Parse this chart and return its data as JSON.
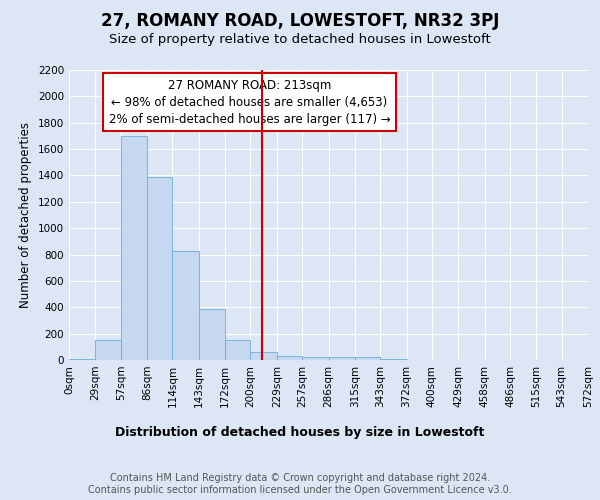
{
  "title": "27, ROMANY ROAD, LOWESTOFT, NR32 3PJ",
  "subtitle": "Size of property relative to detached houses in Lowestoft",
  "xlabel": "Distribution of detached houses by size in Lowestoft",
  "ylabel": "Number of detached properties",
  "property_size": 213,
  "bin_edges": [
    0,
    29,
    57,
    86,
    114,
    143,
    172,
    200,
    229,
    257,
    286,
    315,
    343,
    372,
    400,
    429,
    458,
    486,
    515,
    543,
    572
  ],
  "bar_heights": [
    10,
    155,
    1700,
    1390,
    830,
    390,
    155,
    60,
    30,
    25,
    25,
    20,
    10,
    0,
    0,
    0,
    0,
    0,
    0,
    0
  ],
  "bar_color": "#c5d8f0",
  "bar_edgecolor": "#6baed6",
  "vline_color": "#cc0000",
  "vline_x": 213,
  "annotation_line1": "27 ROMANY ROAD: 213sqm",
  "annotation_line2": "← 98% of detached houses are smaller (4,653)",
  "annotation_line3": "2% of semi-detached houses are larger (117) →",
  "annotation_box_facecolor": "#ffffff",
  "annotation_box_edgecolor": "#cc0000",
  "ylim": [
    0,
    2200
  ],
  "yticks": [
    0,
    200,
    400,
    600,
    800,
    1000,
    1200,
    1400,
    1600,
    1800,
    2000,
    2200
  ],
  "background_color": "#dce6f5",
  "footer_text": "Contains HM Land Registry data © Crown copyright and database right 2024.\nContains public sector information licensed under the Open Government Licence v3.0.",
  "title_fontsize": 12,
  "subtitle_fontsize": 9.5,
  "xlabel_fontsize": 9,
  "ylabel_fontsize": 8.5,
  "tick_fontsize": 7.5,
  "footer_fontsize": 7,
  "annotation_fontsize": 8.5
}
